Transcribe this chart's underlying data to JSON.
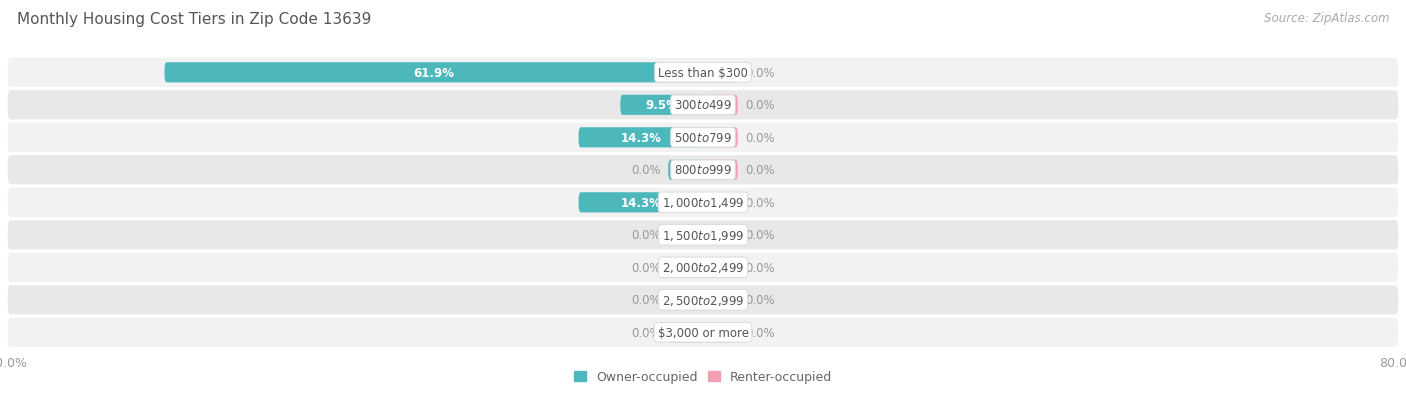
{
  "title": "Monthly Housing Cost Tiers in Zip Code 13639",
  "source": "Source: ZipAtlas.com",
  "categories": [
    "Less than $300",
    "$300 to $499",
    "$500 to $799",
    "$800 to $999",
    "$1,000 to $1,499",
    "$1,500 to $1,999",
    "$2,000 to $2,499",
    "$2,500 to $2,999",
    "$3,000 or more"
  ],
  "owner_values": [
    61.9,
    9.5,
    14.3,
    0.0,
    14.3,
    0.0,
    0.0,
    0.0,
    0.0
  ],
  "renter_values": [
    0.0,
    0.0,
    0.0,
    0.0,
    0.0,
    0.0,
    0.0,
    0.0,
    0.0
  ],
  "owner_color": "#4db8bc",
  "renter_color": "#f4a0b4",
  "row_colors": [
    "#f2f2f2",
    "#e8e8e8"
  ],
  "label_white": "#ffffff",
  "label_dark": "#999999",
  "max_value": 80.0,
  "min_bar_display": 4.0,
  "legend_owner": "Owner-occupied",
  "legend_renter": "Renter-occupied",
  "title_fontsize": 11,
  "source_fontsize": 8.5,
  "bar_label_fontsize": 8.5,
  "category_fontsize": 8.5,
  "axis_fontsize": 9
}
